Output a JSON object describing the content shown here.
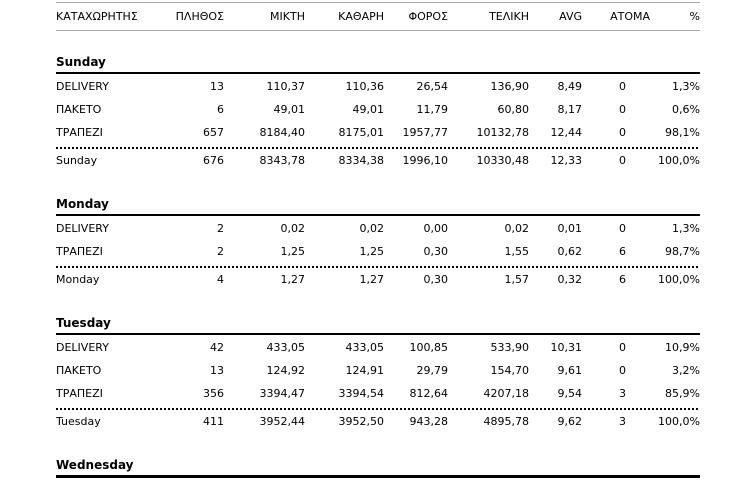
{
  "table": {
    "columns": [
      "ΚΑΤΑΧΩΡΗΤΗΣ",
      "ΠΛΗΘΟΣ",
      "ΜΙΚΤΗ",
      "ΚΑΘΑΡΗ",
      "ΦΟΡΟΣ",
      "ΤΕΛΙΚΗ",
      "AVG",
      "ΑΤΟΜΑ",
      "%"
    ],
    "sections": [
      {
        "day": "Sunday",
        "rows": [
          [
            "DELIVERY",
            "13",
            "110,37",
            "110,36",
            "26,54",
            "136,90",
            "8,49",
            "0",
            "1,3%"
          ],
          [
            "ΠΑΚΕΤΟ",
            "6",
            "49,01",
            "49,01",
            "11,79",
            "60,80",
            "8,17",
            "0",
            "0,6%"
          ],
          [
            "ΤΡΑΠΕΖΙ",
            "657",
            "8184,40",
            "8175,01",
            "1957,77",
            "10132,78",
            "12,44",
            "0",
            "98,1%"
          ]
        ],
        "total": [
          "Sunday",
          "676",
          "8343,78",
          "8334,38",
          "1996,10",
          "10330,48",
          "12,33",
          "0",
          "100,0%"
        ]
      },
      {
        "day": "Monday",
        "rows": [
          [
            "DELIVERY",
            "2",
            "0,02",
            "0,02",
            "0,00",
            "0,02",
            "0,01",
            "0",
            "1,3%"
          ],
          [
            "ΤΡΑΠΕΖΙ",
            "2",
            "1,25",
            "1,25",
            "0,30",
            "1,55",
            "0,62",
            "6",
            "98,7%"
          ]
        ],
        "total": [
          "Monday",
          "4",
          "1,27",
          "1,27",
          "0,30",
          "1,57",
          "0,32",
          "6",
          "100,0%"
        ]
      },
      {
        "day": "Tuesday",
        "rows": [
          [
            "DELIVERY",
            "42",
            "433,05",
            "433,05",
            "100,85",
            "533,90",
            "10,31",
            "0",
            "10,9%"
          ],
          [
            "ΠΑΚΕΤΟ",
            "13",
            "124,92",
            "124,91",
            "29,79",
            "154,70",
            "9,61",
            "0",
            "3,2%"
          ],
          [
            "ΤΡΑΠΕΖΙ",
            "356",
            "3394,47",
            "3394,54",
            "812,64",
            "4207,18",
            "9,54",
            "3",
            "85,9%"
          ]
        ],
        "total": [
          "Tuesday",
          "411",
          "3952,44",
          "3952,50",
          "943,28",
          "4895,78",
          "9,62",
          "3",
          "100,0%"
        ]
      },
      {
        "day": "Wednesday",
        "rows": [],
        "total": null
      }
    ]
  },
  "colors": {
    "text": "#000000",
    "header_rule_gray": "#a8a8a8",
    "section_rule_black": "#000000",
    "background": "#ffffff"
  }
}
